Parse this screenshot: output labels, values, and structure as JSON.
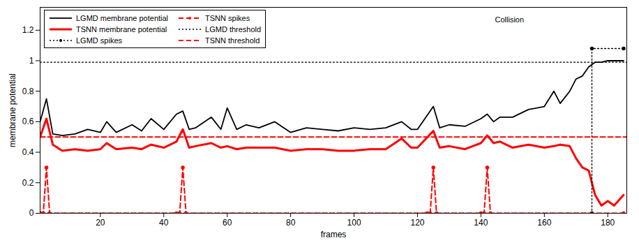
{
  "chart_data": {
    "type": "line",
    "annotation": "Collision",
    "x_label": "frames",
    "y_label": "membrane potential",
    "xlim": [
      1,
      186
    ],
    "xticks": [
      20,
      40,
      60,
      80,
      100,
      120,
      140,
      160,
      180
    ],
    "ylim": [
      0,
      1.35
    ],
    "yticks": [
      0,
      0.2,
      0.4,
      0.6,
      0.8,
      1,
      1.2
    ],
    "grid": false,
    "legend": "upper left",
    "x": [
      1,
      3,
      5,
      8,
      12,
      16,
      20,
      22,
      25,
      30,
      33,
      36,
      40,
      44,
      46,
      48,
      50,
      55,
      58,
      60,
      63,
      66,
      70,
      75,
      80,
      85,
      90,
      95,
      100,
      105,
      110,
      115,
      118,
      120,
      125,
      127,
      130,
      135,
      140,
      142,
      144,
      146,
      150,
      155,
      160,
      163,
      165,
      168,
      170,
      172,
      174,
      176,
      178,
      180,
      182,
      185
    ],
    "series": [
      {
        "name": "LGMD membrane potential",
        "color": "#000000",
        "line_style": "solid",
        "marker": "none",
        "values": [
          0.6,
          0.75,
          0.52,
          0.51,
          0.52,
          0.55,
          0.53,
          0.6,
          0.53,
          0.58,
          0.54,
          0.62,
          0.55,
          0.65,
          0.67,
          0.55,
          0.56,
          0.63,
          0.55,
          0.69,
          0.55,
          0.58,
          0.56,
          0.6,
          0.53,
          0.56,
          0.55,
          0.54,
          0.56,
          0.55,
          0.56,
          0.6,
          0.55,
          0.55,
          0.7,
          0.56,
          0.58,
          0.57,
          0.62,
          0.65,
          0.6,
          0.63,
          0.63,
          0.68,
          0.7,
          0.8,
          0.72,
          0.8,
          0.88,
          0.9,
          0.96,
          0.99,
          0.99,
          1.0,
          1.0,
          1.0
        ]
      },
      {
        "name": "TSNN membrane potential",
        "color": "#ff0000",
        "line_style": "solid",
        "marker": "none",
        "values": [
          0.5,
          0.62,
          0.45,
          0.41,
          0.42,
          0.41,
          0.42,
          0.46,
          0.42,
          0.43,
          0.42,
          0.45,
          0.43,
          0.47,
          0.55,
          0.43,
          0.44,
          0.46,
          0.43,
          0.44,
          0.42,
          0.43,
          0.43,
          0.43,
          0.41,
          0.42,
          0.42,
          0.41,
          0.41,
          0.42,
          0.42,
          0.49,
          0.43,
          0.43,
          0.54,
          0.43,
          0.44,
          0.42,
          0.46,
          0.51,
          0.46,
          0.47,
          0.43,
          0.45,
          0.43,
          0.44,
          0.45,
          0.44,
          0.36,
          0.3,
          0.28,
          0.12,
          0.05,
          0.08,
          0.05,
          0.12
        ]
      },
      {
        "name": "LGMD spikes",
        "color": "#000000",
        "line_style": "dotted",
        "marker": "dot",
        "x": [
          1,
          175,
          175,
          185
        ],
        "values": [
          0,
          0,
          1.08,
          1.08
        ]
      },
      {
        "name": "TSNN spikes",
        "color": "#ff0000",
        "line_style": "dashed",
        "marker": "dot",
        "x": [
          1,
          2,
          3,
          4,
          44,
          45,
          46,
          47,
          123,
          124,
          125,
          126,
          140,
          141,
          142,
          143,
          185
        ],
        "values": [
          0,
          0,
          0.3,
          0,
          0,
          0,
          0.3,
          0,
          0,
          0,
          0.3,
          0,
          0,
          0,
          0.3,
          0,
          0
        ]
      },
      {
        "name": "LGMD threshold",
        "color": "#000000",
        "line_style": "dotted",
        "marker": "none",
        "x": [
          1,
          186
        ],
        "values": [
          0.99,
          0.99
        ]
      },
      {
        "name": "TSNN threshold",
        "color": "#ff0000",
        "line_style": "dashed",
        "marker": "none",
        "x": [
          1,
          186
        ],
        "values": [
          0.5,
          0.5
        ]
      }
    ]
  }
}
